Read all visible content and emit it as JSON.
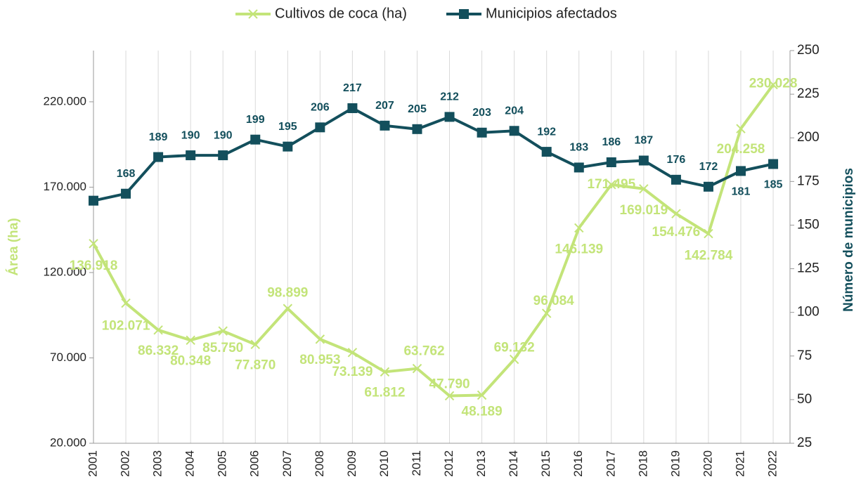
{
  "chart_data": {
    "type": "line",
    "categories": [
      "2001",
      "2002",
      "2003",
      "2004",
      "2005",
      "2006",
      "2007",
      "2008",
      "2009",
      "2010",
      "2011",
      "2012",
      "2013",
      "2014",
      "2015",
      "2016",
      "2017",
      "2018",
      "2019",
      "2020",
      "2021",
      "2022"
    ],
    "series": [
      {
        "name": "Cultivos de coca (ha)",
        "color": "#c3e479",
        "marker": "x",
        "values": [
          136918,
          102071,
          86332,
          80348,
          85750,
          77870,
          98899,
          80953,
          73139,
          61812,
          63762,
          47790,
          48189,
          69132,
          96084,
          146139,
          171495,
          169019,
          154476,
          142784,
          204258,
          230028
        ],
        "value_labels": [
          "136.918",
          "102.071",
          "86.332",
          "80.348",
          "85.750",
          "77.870",
          "98.899",
          "80.953",
          "73.139",
          "61.812",
          "63.762",
          "47.790",
          "48.189",
          "69.132",
          "96.084",
          "146.139",
          "171.495",
          "169.019",
          "154.476",
          "142.784",
          "204.258",
          "230.028"
        ]
      },
      {
        "name": "Municipios afectados",
        "color": "#134f5c",
        "marker": "square",
        "axis": "y2",
        "values": [
          164,
          168,
          189,
          190,
          190,
          199,
          195,
          206,
          217,
          207,
          205,
          212,
          203,
          204,
          192,
          183,
          186,
          187,
          176,
          172,
          181,
          185
        ],
        "value_labels": [
          null,
          "168",
          "189",
          "190",
          "190",
          "199",
          "195",
          "206",
          "217",
          "207",
          "205",
          "212",
          "203",
          "204",
          "192",
          "183",
          "186",
          "187",
          "176",
          "172",
          "181",
          "185"
        ]
      }
    ],
    "ylabel": "Área (ha)",
    "y2label": "Número de municipios",
    "ylim": [
      20000,
      250000
    ],
    "yticks": [
      {
        "value": 20000,
        "label": "20.000"
      },
      {
        "value": 70000,
        "label": "70.000"
      },
      {
        "value": 120000,
        "label": "120.000"
      },
      {
        "value": 170000,
        "label": "170.000"
      },
      {
        "value": 220000,
        "label": "220.000"
      }
    ],
    "y2lim": [
      25,
      250
    ],
    "y2ticks": [
      25,
      50,
      75,
      100,
      125,
      150,
      175,
      200,
      225,
      250
    ],
    "grid": true,
    "legend": "top"
  }
}
